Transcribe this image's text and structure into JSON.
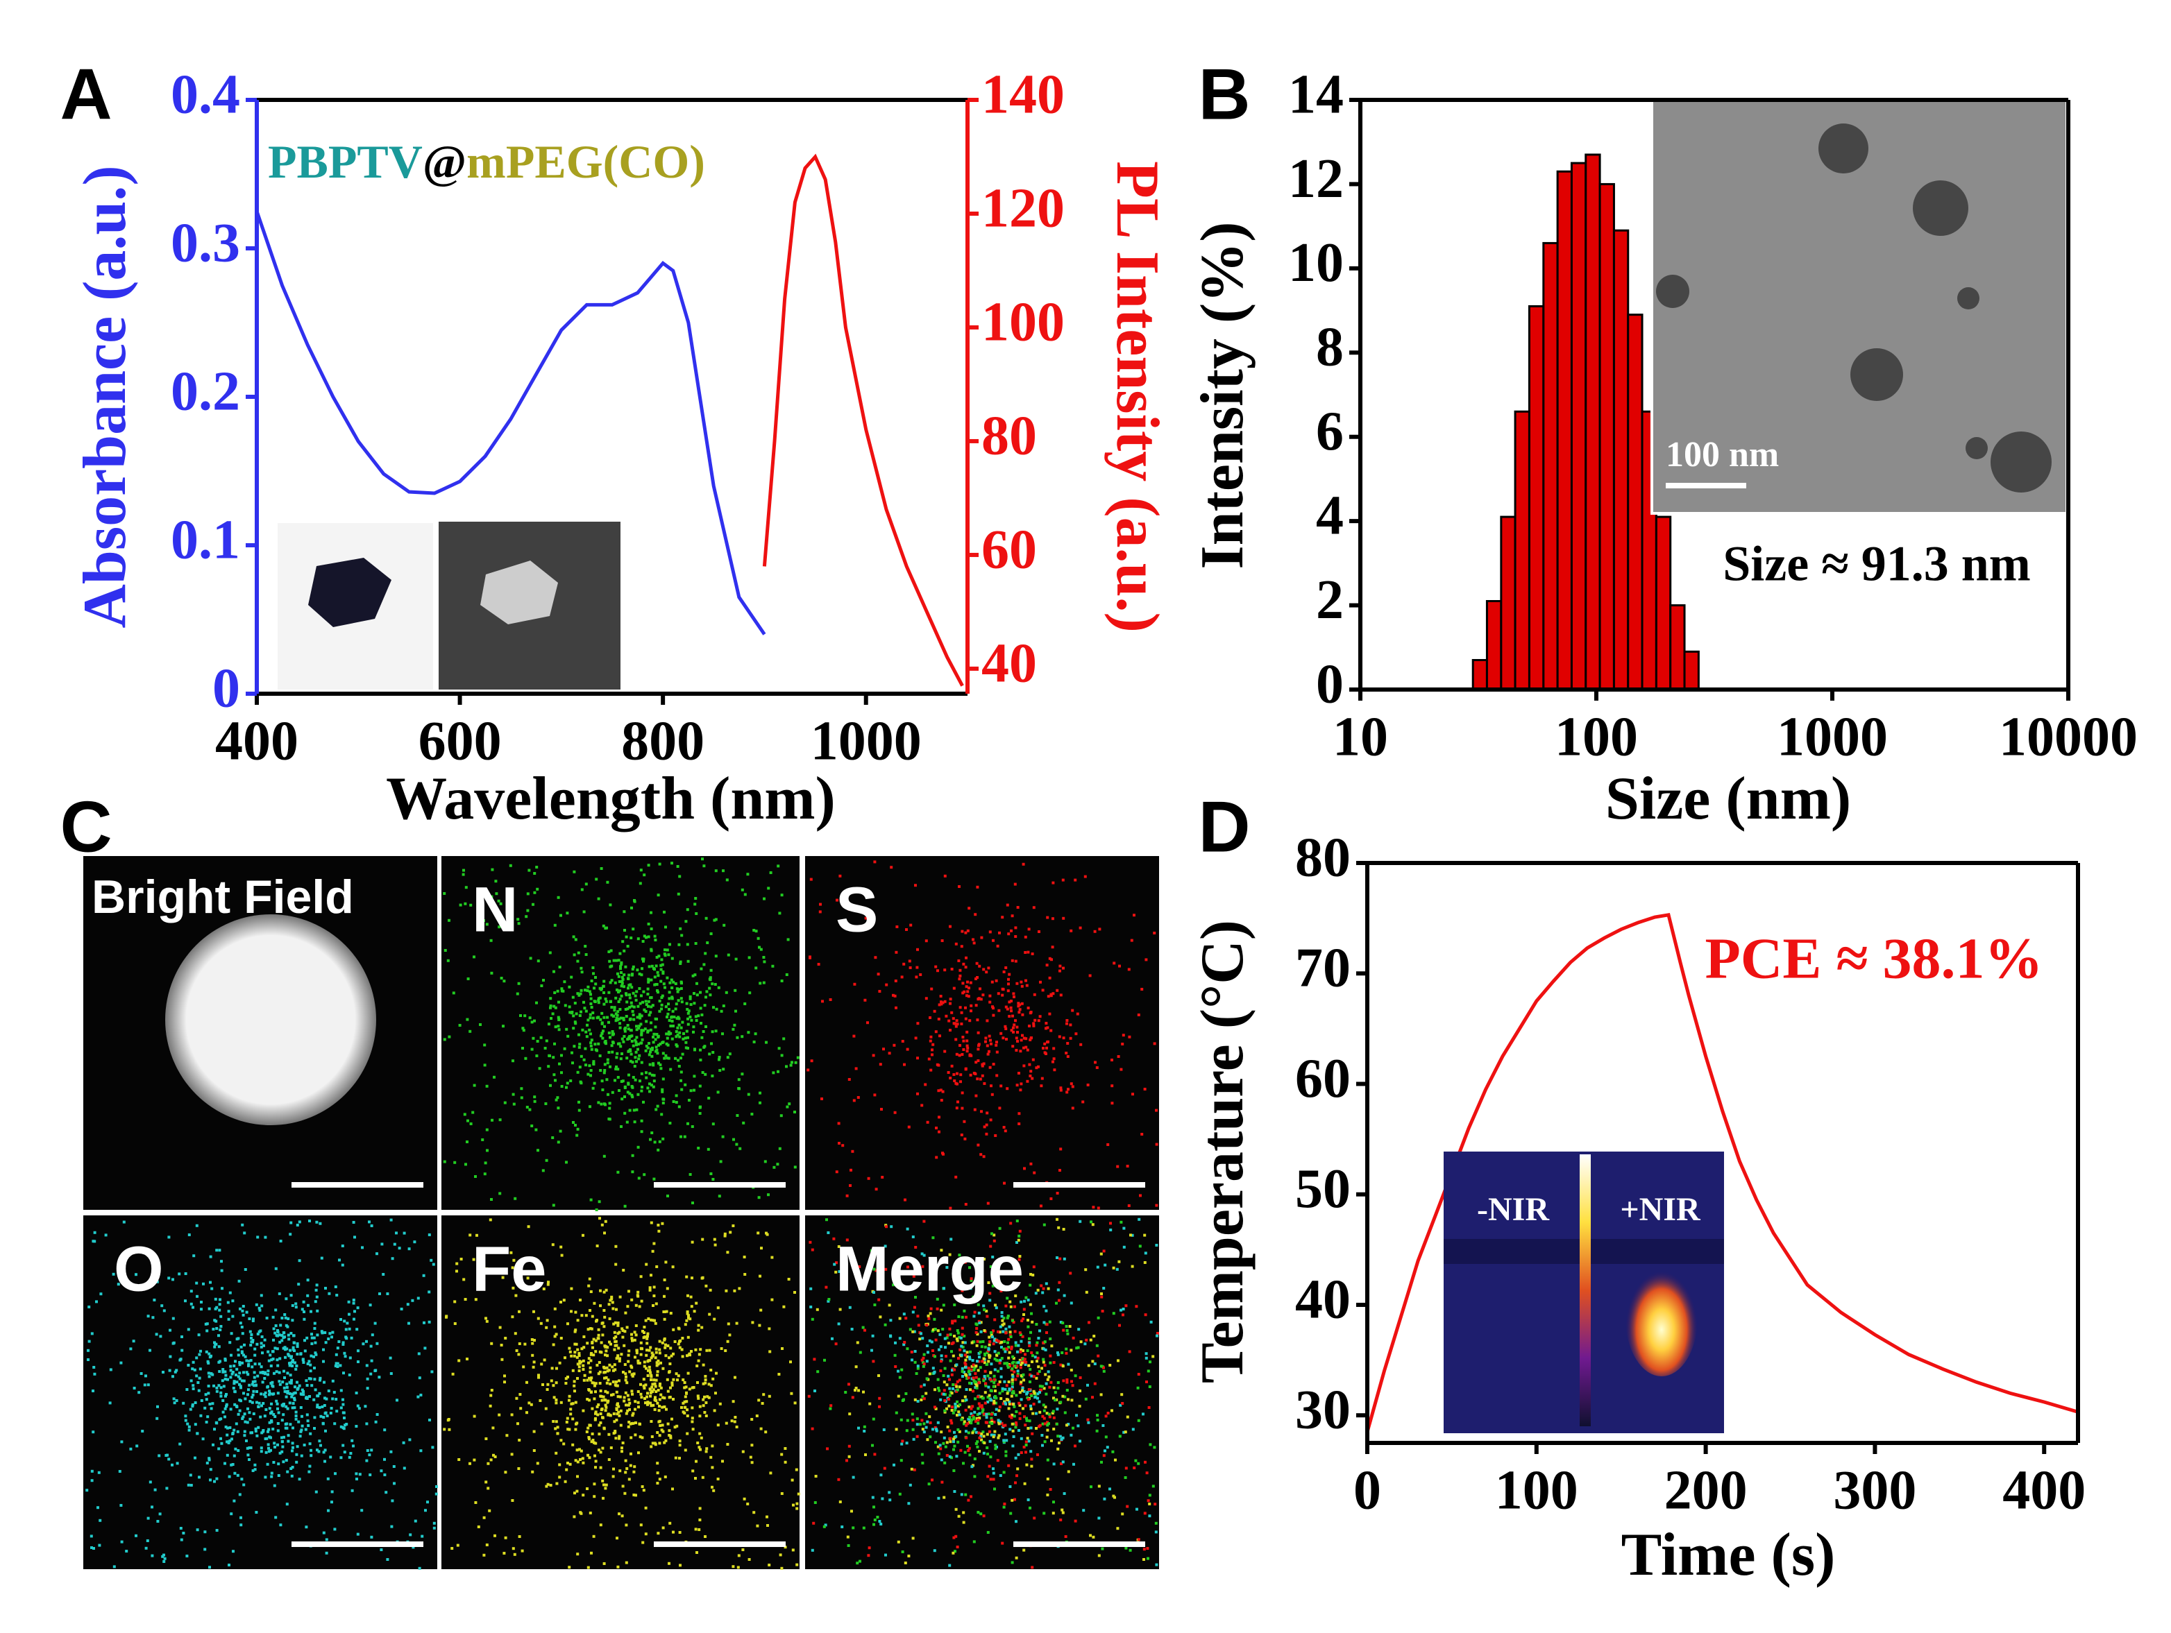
{
  "chart_data": [
    {
      "type": "line",
      "panel_label": "A",
      "x_label": "Wavelength (nm)",
      "y_label": "Absorbance (a.u.)",
      "y2_label": "PL Intensity (a.u.)",
      "y_color": "#3030ee",
      "y2_color": "#ee1111",
      "xlim": [
        400,
        1100
      ],
      "xticks": [
        400,
        600,
        800,
        1000
      ],
      "ylim": [
        0,
        0.4
      ],
      "yticks": [
        0,
        0.1,
        0.2,
        0.3,
        0.4
      ],
      "y2lim": [
        35.6,
        140
      ],
      "y2ticks": [
        40,
        60,
        80,
        100,
        120,
        140
      ],
      "annotation_parts": [
        {
          "text": "PBPTV",
          "color": "#1a9a9a"
        },
        {
          "text": "@",
          "color": "#000000"
        },
        {
          "text": "mPEG(CO)",
          "color": "#a8a020"
        }
      ],
      "series": [
        {
          "color": "#3030ee",
          "x": [
            400,
            425,
            450,
            475,
            500,
            525,
            550,
            575,
            600,
            625,
            650,
            675,
            700,
            725,
            750,
            775,
            800,
            810,
            825,
            850,
            875,
            900
          ],
          "values": [
            0.325,
            0.275,
            0.235,
            0.2,
            0.17,
            0.148,
            0.136,
            0.135,
            0.143,
            0.16,
            0.185,
            0.215,
            0.245,
            0.262,
            0.262,
            0.27,
            0.29,
            0.285,
            0.25,
            0.14,
            0.065,
            0.04
          ]
        },
        {
          "color": "#ee1111",
          "axis": "y2",
          "x": [
            900,
            910,
            920,
            930,
            940,
            950,
            960,
            970,
            980,
            1000,
            1020,
            1040,
            1060,
            1080,
            1095
          ],
          "values": [
            58,
            80,
            105,
            122,
            128,
            130,
            126,
            115,
            100,
            82,
            68,
            58,
            50,
            42,
            37
          ]
        }
      ]
    },
    {
      "type": "histogram",
      "panel_label": "B",
      "x_label": "Size (nm)",
      "y_label": "Intensity (%)",
      "xscale": "log",
      "xlim": [
        10,
        10000
      ],
      "xticks": [
        10,
        100,
        1000,
        10000
      ],
      "ylim": [
        0,
        14
      ],
      "yticks": [
        0,
        2,
        4,
        6,
        8,
        10,
        12,
        14
      ],
      "color": "#e00000",
      "bins": [
        30,
        34.4,
        39.5,
        45.3,
        52.0,
        59.7,
        68.5,
        78.6,
        90.2,
        103.5,
        118.8,
        136.3,
        156.4,
        179.5,
        206.0,
        236.4,
        271.3
      ],
      "values": [
        0.7,
        2.1,
        4.1,
        6.6,
        9.1,
        10.6,
        12.3,
        12.5,
        12.7,
        12.0,
        10.9,
        8.9,
        6.6,
        4.1,
        2.0,
        0.9
      ],
      "annotation": "Size ≈ 91.3 nm",
      "inset_scale_label": "100 nm"
    },
    {
      "type": "line",
      "panel_label": "D",
      "x_label": "Time (s)",
      "y_label": "Temperature (°C)",
      "xlim": [
        0,
        420
      ],
      "xticks": [
        0,
        100,
        200,
        300,
        400
      ],
      "ylim": [
        27.5,
        80
      ],
      "yticks": [
        30,
        40,
        50,
        60,
        70,
        80
      ],
      "annotation": "PCE ≈ 38.1%",
      "annotation_color": "#ee1111",
      "inset_labels": [
        "-NIR",
        "+NIR"
      ],
      "series": [
        {
          "color": "#ee1111",
          "x": [
            0,
            10,
            20,
            30,
            40,
            50,
            60,
            70,
            80,
            90,
            100,
            110,
            120,
            130,
            140,
            150,
            160,
            170,
            178,
            185,
            190,
            200,
            210,
            220,
            230,
            240,
            260,
            280,
            300,
            320,
            340,
            360,
            380,
            400,
            420
          ],
          "values": [
            28.5,
            34,
            39,
            44,
            48,
            52,
            56,
            59.5,
            62.5,
            65,
            67.5,
            69.3,
            71,
            72.3,
            73.2,
            74,
            74.6,
            75.1,
            75.3,
            71,
            68,
            62.5,
            57.5,
            53,
            49.5,
            46.5,
            41.8,
            39.3,
            37.3,
            35.5,
            34.2,
            33,
            32,
            31.2,
            30.3
          ]
        }
      ]
    }
  ],
  "eds_mapping": {
    "panel_label": "C",
    "tiles": [
      {
        "label": "Bright Field",
        "color": "#ffffff"
      },
      {
        "label": "N",
        "color": "#22cc22"
      },
      {
        "label": "S",
        "color": "#ee1111"
      },
      {
        "label": "O",
        "color": "#22cccc"
      },
      {
        "label": "Fe",
        "color": "#dddd22"
      },
      {
        "label": "Merge",
        "color": "#ccee66"
      }
    ]
  }
}
